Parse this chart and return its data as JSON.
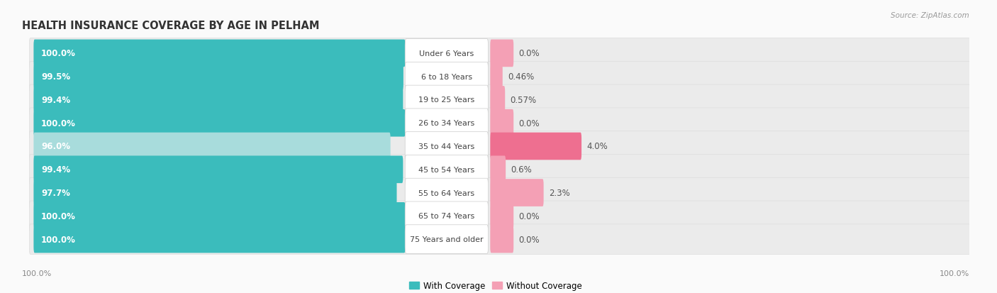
{
  "title": "HEALTH INSURANCE COVERAGE BY AGE IN PELHAM",
  "source": "Source: ZipAtlas.com",
  "categories": [
    "Under 6 Years",
    "6 to 18 Years",
    "19 to 25 Years",
    "26 to 34 Years",
    "35 to 44 Years",
    "45 to 54 Years",
    "55 to 64 Years",
    "65 to 74 Years",
    "75 Years and older"
  ],
  "with_coverage": [
    100.0,
    99.5,
    99.4,
    100.0,
    96.0,
    99.4,
    97.7,
    100.0,
    100.0
  ],
  "without_coverage": [
    0.0,
    0.46,
    0.57,
    0.0,
    4.0,
    0.6,
    2.3,
    0.0,
    0.0
  ],
  "without_coverage_labels": [
    "0.0%",
    "0.46%",
    "0.57%",
    "0.0%",
    "4.0%",
    "0.6%",
    "2.3%",
    "0.0%",
    "0.0%"
  ],
  "with_coverage_labels": [
    "100.0%",
    "99.5%",
    "99.4%",
    "100.0%",
    "96.0%",
    "99.4%",
    "97.7%",
    "100.0%",
    "100.0%"
  ],
  "with_color": "#3BBCBC",
  "with_color_light": "#A8DCDC",
  "without_color": "#F4A0B5",
  "without_color_dark": "#EE6F90",
  "row_bg_color": "#E8E8E8",
  "background_color": "#FAFAFA",
  "title_fontsize": 10.5,
  "label_fontsize": 8.5,
  "cat_fontsize": 8.0,
  "tick_fontsize": 8.0,
  "legend_fontsize": 8.5
}
